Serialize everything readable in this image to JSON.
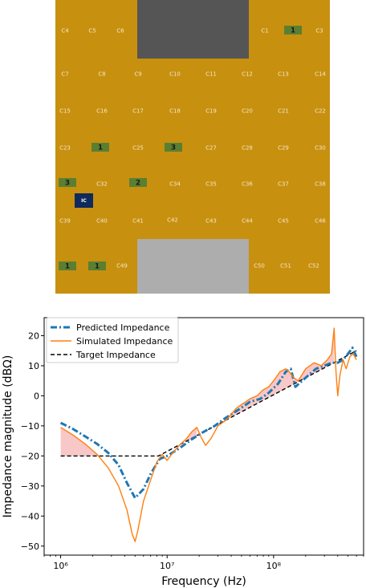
{
  "board": {
    "colors": {
      "board": "#c8900f",
      "badge": "#5a7f32",
      "ic": "#0f2a5c",
      "top_cutout": "#5a5a5a",
      "bottom_cutout": "#b0b0b0"
    },
    "capacitors": [
      "C1",
      "C3",
      "C4",
      "C5",
      "C6",
      "C7",
      "C8",
      "C9",
      "C10",
      "C11",
      "C12",
      "C13",
      "C14",
      "C15",
      "C16",
      "C17",
      "C18",
      "C19",
      "C20",
      "C21",
      "C22",
      "C23",
      "C25",
      "C27",
      "C28",
      "C29",
      "C30",
      "C32",
      "C34",
      "C35",
      "C36",
      "C37",
      "C38",
      "C39",
      "C40",
      "C41",
      "C42",
      "C43",
      "C44",
      "C45",
      "C46",
      "C49",
      "C50",
      "C51",
      "C52"
    ],
    "badges": [
      "1",
      "1",
      "3",
      "3",
      "2",
      "1",
      "1"
    ],
    "ic_label": "IC"
  },
  "chart_data": {
    "type": "line",
    "xscale": "log",
    "xlabel": "Frequency (Hz)",
    "ylabel": "Impedance magnitude (dBΩ)",
    "xlim": [
      700000,
      700000000
    ],
    "ylim": [
      -53,
      26
    ],
    "x_ticks": [
      1000000,
      10000000,
      100000000
    ],
    "x_tick_labels": [
      "10⁶",
      "10⁷",
      "10⁸"
    ],
    "y_ticks": [
      -50,
      -40,
      -30,
      -20,
      -10,
      0,
      10,
      20
    ],
    "y_tick_labels": [
      "−50",
      "−40",
      "−30",
      "−20",
      "−10",
      "0",
      "10",
      "20"
    ],
    "legend_position": "top-left",
    "series": [
      {
        "name": "Predicted Impedance",
        "color": "#1f77b4",
        "style": "dashdot",
        "x": [
          1000000,
          1300000,
          1700000,
          2200000,
          2800000,
          3500000,
          4200000,
          5000000,
          6000000,
          7000000,
          8500000,
          10000000,
          13000000,
          17000000,
          22000000,
          28000000,
          35000000,
          45000000,
          60000000,
          75000000,
          90000000,
          110000000,
          130000000,
          145000000,
          160000000,
          200000000,
          250000000,
          300000000,
          350000000,
          400000000,
          450000000,
          500000000,
          550000000,
          600000000
        ],
        "y": [
          -9,
          -11,
          -13.5,
          -16,
          -19,
          -23,
          -29,
          -34,
          -31,
          -26,
          -21,
          -20,
          -17.5,
          -14.5,
          -12,
          -10,
          -7.5,
          -5,
          -2,
          -1,
          1,
          4,
          8,
          9,
          3,
          6,
          9,
          10,
          11,
          11,
          12,
          14,
          16,
          13
        ]
      },
      {
        "name": "Simulated Impedance",
        "color": "#ff7f0e",
        "style": "solid",
        "x": [
          1000000,
          1300000,
          1700000,
          2200000,
          2800000,
          3500000,
          4200000,
          4700000,
          5000000,
          5300000,
          6000000,
          7000000,
          8000000,
          9000000,
          10000000,
          11000000,
          13000000,
          15000000,
          17000000,
          19000000,
          21000000,
          23000000,
          26000000,
          30000000,
          36000000,
          45000000,
          60000000,
          70000000,
          80000000,
          90000000,
          100000000,
          115000000,
          130000000,
          140000000,
          155000000,
          170000000,
          200000000,
          240000000,
          280000000,
          320000000,
          350000000,
          370000000,
          385000000,
          400000000,
          420000000,
          450000000,
          480000000,
          520000000,
          560000000,
          600000000
        ],
        "y": [
          -10.5,
          -13,
          -16,
          -19.5,
          -24,
          -30,
          -38,
          -46,
          -48.5,
          -45,
          -35,
          -28,
          -22,
          -19.5,
          -21.5,
          -19.5,
          -16.5,
          -14.5,
          -12,
          -10.5,
          -14,
          -16.5,
          -14,
          -10,
          -8,
          -4,
          -1,
          0,
          2,
          3,
          5,
          8,
          9,
          8,
          6,
          5,
          9,
          11,
          10,
          12,
          14,
          22.5,
          8,
          0,
          7,
          12,
          9,
          13,
          14,
          12
        ]
      },
      {
        "name": "Target Impedance",
        "color": "#000000",
        "style": "dashed",
        "x": [
          1000000,
          8300000,
          600000000
        ],
        "y": [
          -20,
          -20,
          15
        ]
      }
    ]
  }
}
